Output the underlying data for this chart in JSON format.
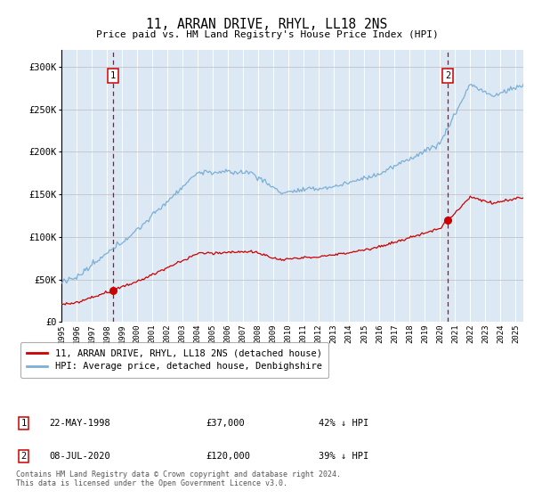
{
  "title": "11, ARRAN DRIVE, RHYL, LL18 2NS",
  "subtitle": "Price paid vs. HM Land Registry's House Price Index (HPI)",
  "hpi_color": "#7bafd4",
  "price_color": "#cc0000",
  "vline_color": "#cc0000",
  "background_color": "#dce9f5",
  "sale1": {
    "date_num": 1998.39,
    "price": 37000,
    "label": "1",
    "text": "22-MAY-1998",
    "amount": "£37,000",
    "pct": "42% ↓ HPI"
  },
  "sale2": {
    "date_num": 2020.52,
    "price": 120000,
    "label": "2",
    "text": "08-JUL-2020",
    "amount": "£120,000",
    "pct": "39% ↓ HPI"
  },
  "legend_line1": "11, ARRAN DRIVE, RHYL, LL18 2NS (detached house)",
  "legend_line2": "HPI: Average price, detached house, Denbighshire",
  "footer": "Contains HM Land Registry data © Crown copyright and database right 2024.\nThis data is licensed under the Open Government Licence v3.0.",
  "ylabel_ticks": [
    "£0",
    "£50K",
    "£100K",
    "£150K",
    "£200K",
    "£250K",
    "£300K"
  ],
  "ytick_vals": [
    0,
    50000,
    100000,
    150000,
    200000,
    250000,
    300000
  ],
  "ylim": [
    0,
    320000
  ],
  "xlim_start": 1995.0,
  "xlim_end": 2025.5
}
